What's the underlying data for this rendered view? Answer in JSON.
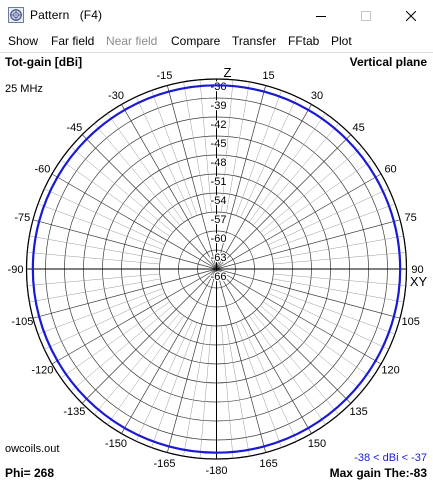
{
  "window": {
    "title": "Pattern   (F4)",
    "controls": [
      "minimize",
      "maximize",
      "close"
    ]
  },
  "menu": {
    "items": [
      {
        "label": "Show",
        "enabled": true
      },
      {
        "label": "Far field",
        "enabled": true
      },
      {
        "label": "Near field",
        "enabled": false
      },
      {
        "label": "Compare",
        "enabled": true
      },
      {
        "label": "Transfer",
        "enabled": true
      },
      {
        "label": "FFtab",
        "enabled": true
      },
      {
        "label": "Plot",
        "enabled": true
      }
    ]
  },
  "plot": {
    "quantity_label": "Tot-gain [dBi]",
    "plane_label": "Vertical plane",
    "frequency": "25 MHz",
    "file": "owcoils.out",
    "phi": "Phi= 268",
    "range": "-38 < dBi < -37",
    "max_gain": "Max gain The:-83",
    "axis_z": "Z",
    "axis_xy": "XY",
    "angle_labels": [
      "0",
      "15",
      "30",
      "45",
      "60",
      "75",
      "90",
      "105",
      "120",
      "135",
      "150",
      "165",
      "-180",
      "-165",
      "-150",
      "-135",
      "-120",
      "-105",
      "-90",
      "-75",
      "-60",
      "-45",
      "-30",
      "-15"
    ],
    "angle_values": [
      0,
      15,
      30,
      45,
      60,
      75,
      90,
      105,
      120,
      135,
      150,
      165,
      180,
      -165,
      -150,
      -135,
      -120,
      -105,
      -90,
      -75,
      -60,
      -45,
      -30,
      -15
    ],
    "ring_labels": [
      "-36",
      "-39",
      "-42",
      "-45",
      "-48",
      "-51",
      "-54",
      "-57",
      "-60",
      "-63",
      "-66"
    ],
    "ring_values": [
      -36,
      -39,
      -42,
      -45,
      -48,
      -51,
      -54,
      -57,
      -60,
      -63,
      -66
    ],
    "pattern_color": "#1a1ad4",
    "grid_color": "#3a3a3a"
  },
  "chart_data": {
    "type": "polar",
    "title": "Vertical plane",
    "quantity": "Tot-gain [dBi]",
    "r_range": [
      -66,
      -36
    ],
    "r_ticks": [
      -36,
      -39,
      -42,
      -45,
      -48,
      -51,
      -54,
      -57,
      -60,
      -63,
      -66
    ],
    "theta_ticks_deg": [
      -180,
      -165,
      -150,
      -135,
      -120,
      -105,
      -90,
      -75,
      -60,
      -45,
      -30,
      -15,
      0,
      15,
      30,
      45,
      60,
      75,
      90,
      105,
      120,
      135,
      150,
      165
    ],
    "series": [
      {
        "theta_deg": [
          0,
          15,
          30,
          45,
          60,
          75,
          90,
          105,
          120,
          135,
          150,
          165,
          180,
          -165,
          -150,
          -135,
          -120,
          -105,
          -90,
          -75,
          -60,
          -45,
          -30,
          -15
        ],
        "gain_dbi": [
          -37,
          -37,
          -37,
          -37,
          -37,
          -37,
          -37,
          -37,
          -37,
          -37,
          -37,
          -37,
          -37,
          -37,
          -37,
          -37,
          -37,
          -37,
          -37,
          -37,
          -37,
          -37,
          -37,
          -37
        ]
      }
    ]
  }
}
